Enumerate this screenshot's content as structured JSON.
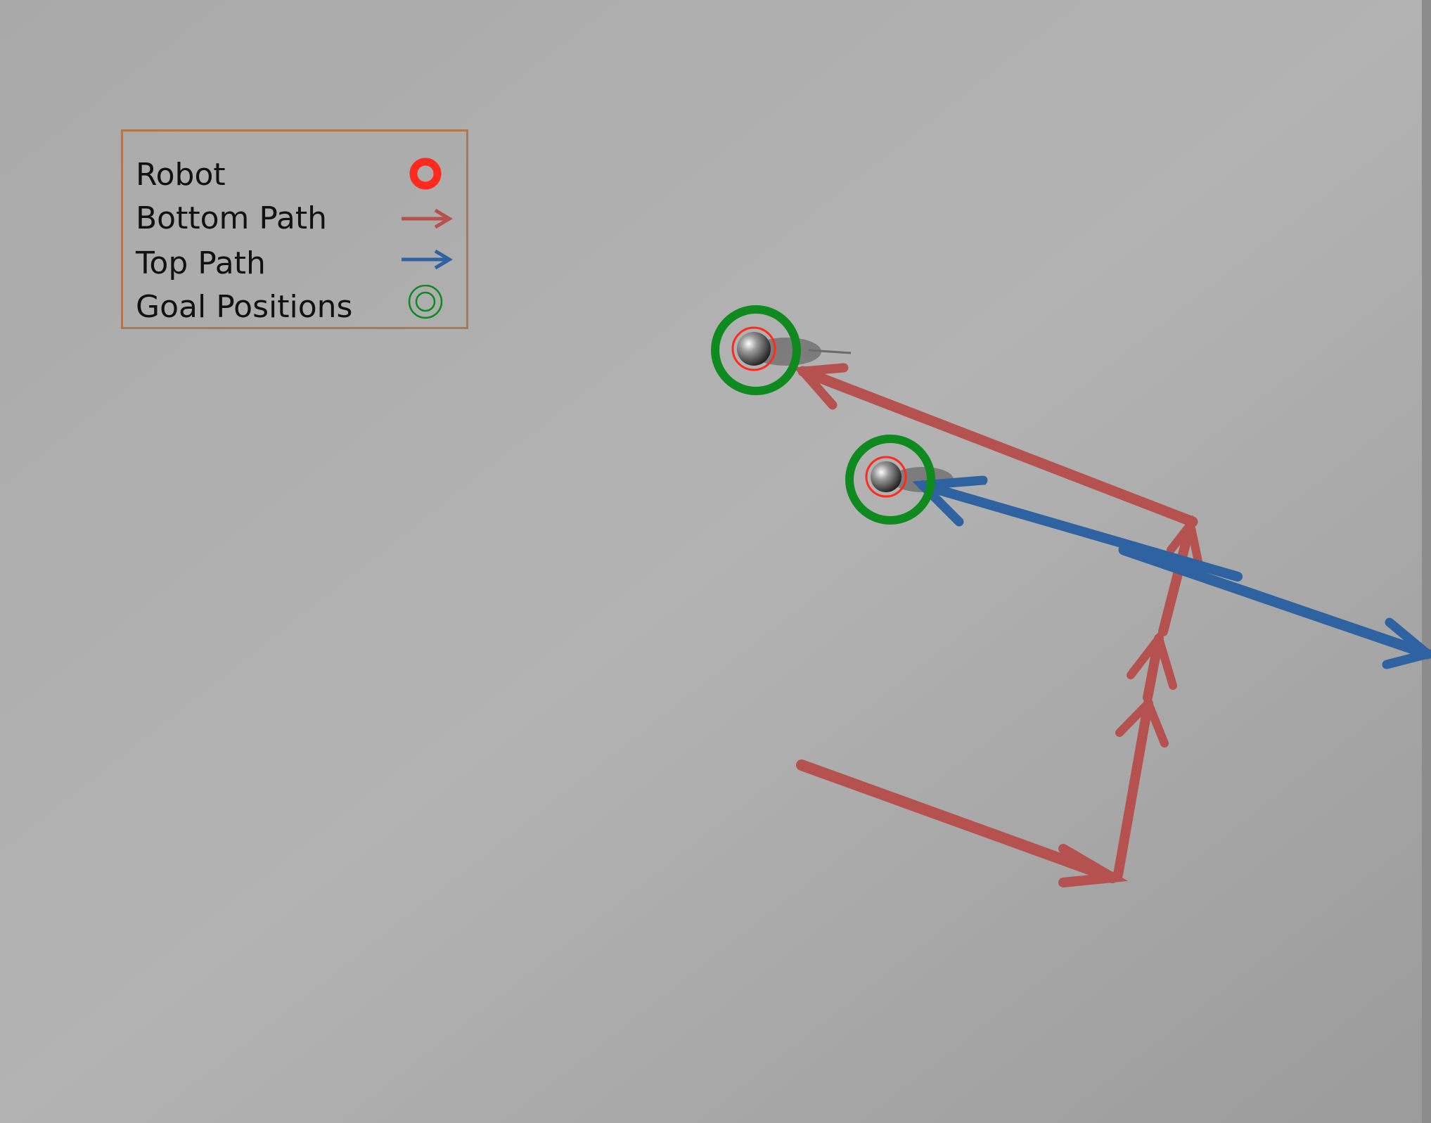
{
  "scene": {
    "background": "#a8a8a8",
    "bottom_path_color": "#b5524f",
    "top_path_color": "#2e62a0",
    "robot_color": "#ff2a1e",
    "goal_color": "#0e8a1f"
  },
  "legend": {
    "items": [
      {
        "label": "Robot",
        "icon": "robot-icon"
      },
      {
        "label": "Bottom Path",
        "icon": "bottom-path-arrow-icon"
      },
      {
        "label": "Top Path",
        "icon": "top-path-arrow-icon"
      },
      {
        "label": "Goal Positions",
        "icon": "goal-position-icon"
      }
    ]
  }
}
